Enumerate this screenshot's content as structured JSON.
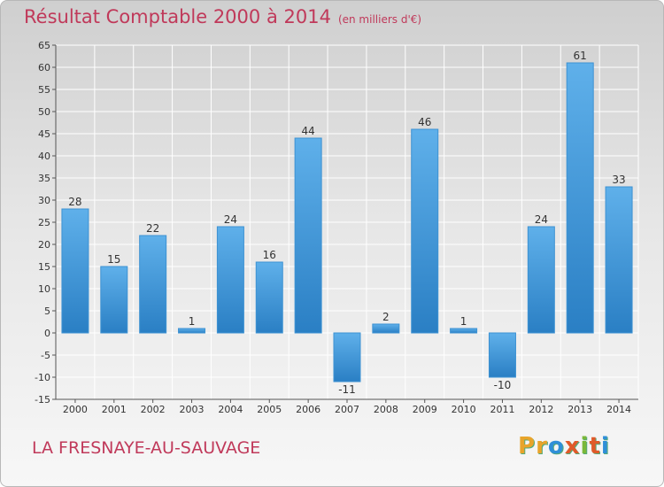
{
  "header": {
    "title": "Résultat Comptable 2000 à 2014",
    "subtitle": "(en milliers d'€)"
  },
  "footer": {
    "commune": "LA FRESNAYE-AU-SAUVAGE",
    "logo_letters": [
      "P",
      "r",
      "o",
      "x",
      "i",
      "t",
      "i"
    ]
  },
  "colors": {
    "title": "#c0395a",
    "bar_top": "#5fb0ea",
    "bar_bottom": "#2a7fc4",
    "logo": [
      "#e8a42b",
      "#e8a42b",
      "#2f8fd8",
      "#e05a2a",
      "#7ab83a",
      "#e05a2a",
      "#2f8fd8"
    ]
  },
  "chart_data": {
    "type": "bar",
    "title": "Résultat Comptable 2000 à 2014",
    "subtitle": "(en milliers d'€)",
    "xlabel": "",
    "ylabel": "",
    "categories": [
      "2000",
      "2001",
      "2002",
      "2003",
      "2004",
      "2005",
      "2006",
      "2007",
      "2008",
      "2009",
      "2010",
      "2011",
      "2012",
      "2013",
      "2014"
    ],
    "values": [
      28,
      15,
      22,
      1,
      24,
      16,
      44,
      -11,
      2,
      46,
      1,
      -10,
      24,
      61,
      33
    ],
    "value_labels": [
      "28",
      "15",
      "22",
      "1",
      "24",
      "16",
      "44",
      "-11",
      "2",
      "46",
      "1",
      "-10",
      "24",
      "61",
      "33"
    ],
    "ylim": [
      -15,
      65
    ],
    "yticks": [
      -15,
      -10,
      -5,
      0,
      5,
      10,
      15,
      20,
      25,
      30,
      35,
      40,
      45,
      50,
      55,
      60,
      65
    ],
    "grid": true,
    "legend": "none"
  }
}
